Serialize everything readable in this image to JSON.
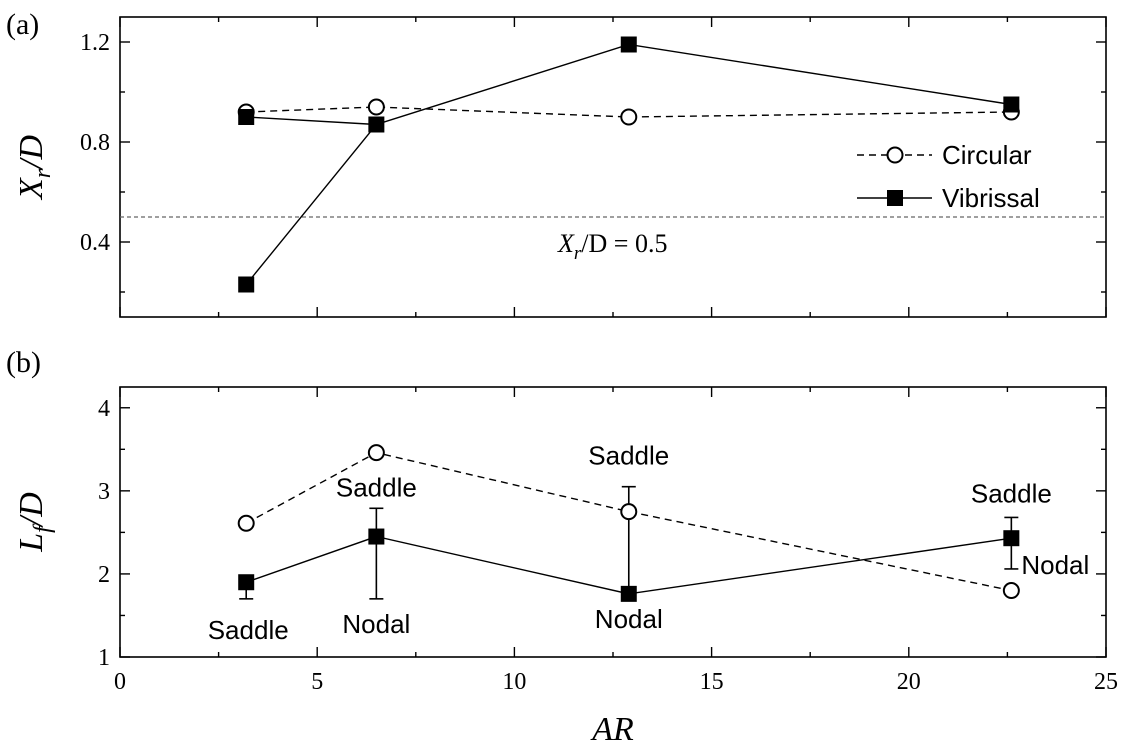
{
  "chart_data": {
    "type": "line",
    "xlabel": "AR",
    "xlim": [
      0,
      25
    ],
    "xticks": [
      0,
      5,
      10,
      15,
      20,
      25
    ],
    "legend": {
      "placement": "right",
      "entries": [
        {
          "name": "Circular",
          "marker": "open-circle",
          "line": "dashed"
        },
        {
          "name": "Vibrissal",
          "marker": "filled-square",
          "line": "solid"
        }
      ]
    },
    "panels": [
      {
        "label": "(a)",
        "ylabel_base": "X",
        "ylabel_sub": "r",
        "ylabel_rest": "/D",
        "ylim": [
          0.1,
          1.3
        ],
        "yticks": [
          "0.4",
          "0.8",
          "1.2"
        ],
        "x": [
          3.2,
          6.5,
          12.9,
          22.6
        ],
        "series": [
          {
            "name": "Circular",
            "values": [
              0.92,
              0.94,
              0.9,
              0.92
            ]
          },
          {
            "name": "Vibrissal",
            "values": [
              0.23,
              0.87,
              1.19,
              0.95
            ],
            "extra_points": [
              {
                "x": 3.2,
                "y": 0.9
              }
            ],
            "line_path": [
              [
                3.2,
                0.23
              ],
              [
                6.5,
                0.87
              ],
              [
                12.9,
                1.19
              ],
              [
                22.6,
                0.95
              ]
            ],
            "second_path": [
              [
                3.2,
                0.9
              ],
              [
                6.5,
                0.87
              ]
            ]
          }
        ],
        "reference_line": {
          "y": 0.5,
          "label_base": "X",
          "label_sub": "r",
          "label_rest": "/D = 0.5"
        }
      },
      {
        "label": "(b)",
        "ylabel_base": "L",
        "ylabel_sub": "f",
        "ylabel_rest": "/D",
        "ylim": [
          1,
          4.25
        ],
        "yticks": [
          "1",
          "2",
          "3",
          "4"
        ],
        "x": [
          3.2,
          6.5,
          12.9,
          22.6
        ],
        "series": [
          {
            "name": "Circular",
            "values": [
              2.61,
              3.46,
              2.75,
              1.8
            ]
          },
          {
            "name": "Vibrissal",
            "values": [
              1.9,
              2.45,
              1.76,
              2.43
            ],
            "error_low": [
              1.7,
              1.7,
              1.76,
              2.06
            ],
            "error_high": [
              1.9,
              2.79,
              3.05,
              2.68
            ]
          }
        ],
        "annotations": [
          {
            "text": "Saddle",
            "x": 3.2,
            "pos": "below-left"
          },
          {
            "text": "Nodal",
            "x": 6.5,
            "pos": "below"
          },
          {
            "text": "Saddle",
            "x": 6.5,
            "pos": "above"
          },
          {
            "text": "Saddle",
            "x": 12.9,
            "pos": "above"
          },
          {
            "text": "Nodal",
            "x": 12.9,
            "pos": "below"
          },
          {
            "text": "Saddle",
            "x": 22.6,
            "pos": "above"
          },
          {
            "text": "Nodal",
            "x": 22.6,
            "pos": "right"
          }
        ]
      }
    ]
  }
}
